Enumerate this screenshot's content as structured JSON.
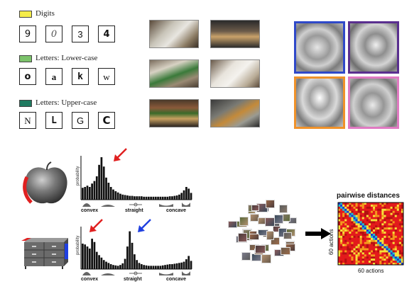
{
  "panel_characters": {
    "groups": [
      {
        "label": "Digits",
        "color": "#f5ec4a",
        "chars": [
          "9",
          "0",
          "3",
          "4"
        ]
      },
      {
        "label": "Letters: Lower-case",
        "color": "#7cc36b",
        "chars": [
          "o",
          "a",
          "k",
          "w"
        ]
      },
      {
        "label": "Letters: Upper-case",
        "color": "#1f7a60",
        "chars": [
          "N",
          "L",
          "G",
          "C"
        ]
      }
    ]
  },
  "panel_feature_vis": {
    "colors": [
      "#2f49c9",
      "#5a2f8f",
      "#f0922a",
      "#e07ac2"
    ]
  },
  "panel_shape": {
    "y_label": "probability",
    "x_labels": [
      "convex",
      "straight",
      "concave"
    ],
    "arrow_colors": [
      "#e02020",
      "#2040e0"
    ]
  },
  "panel_actions": {
    "matrix_title": "pairwise distances",
    "x_label": "60 actions",
    "y_label": "60 actions"
  }
}
